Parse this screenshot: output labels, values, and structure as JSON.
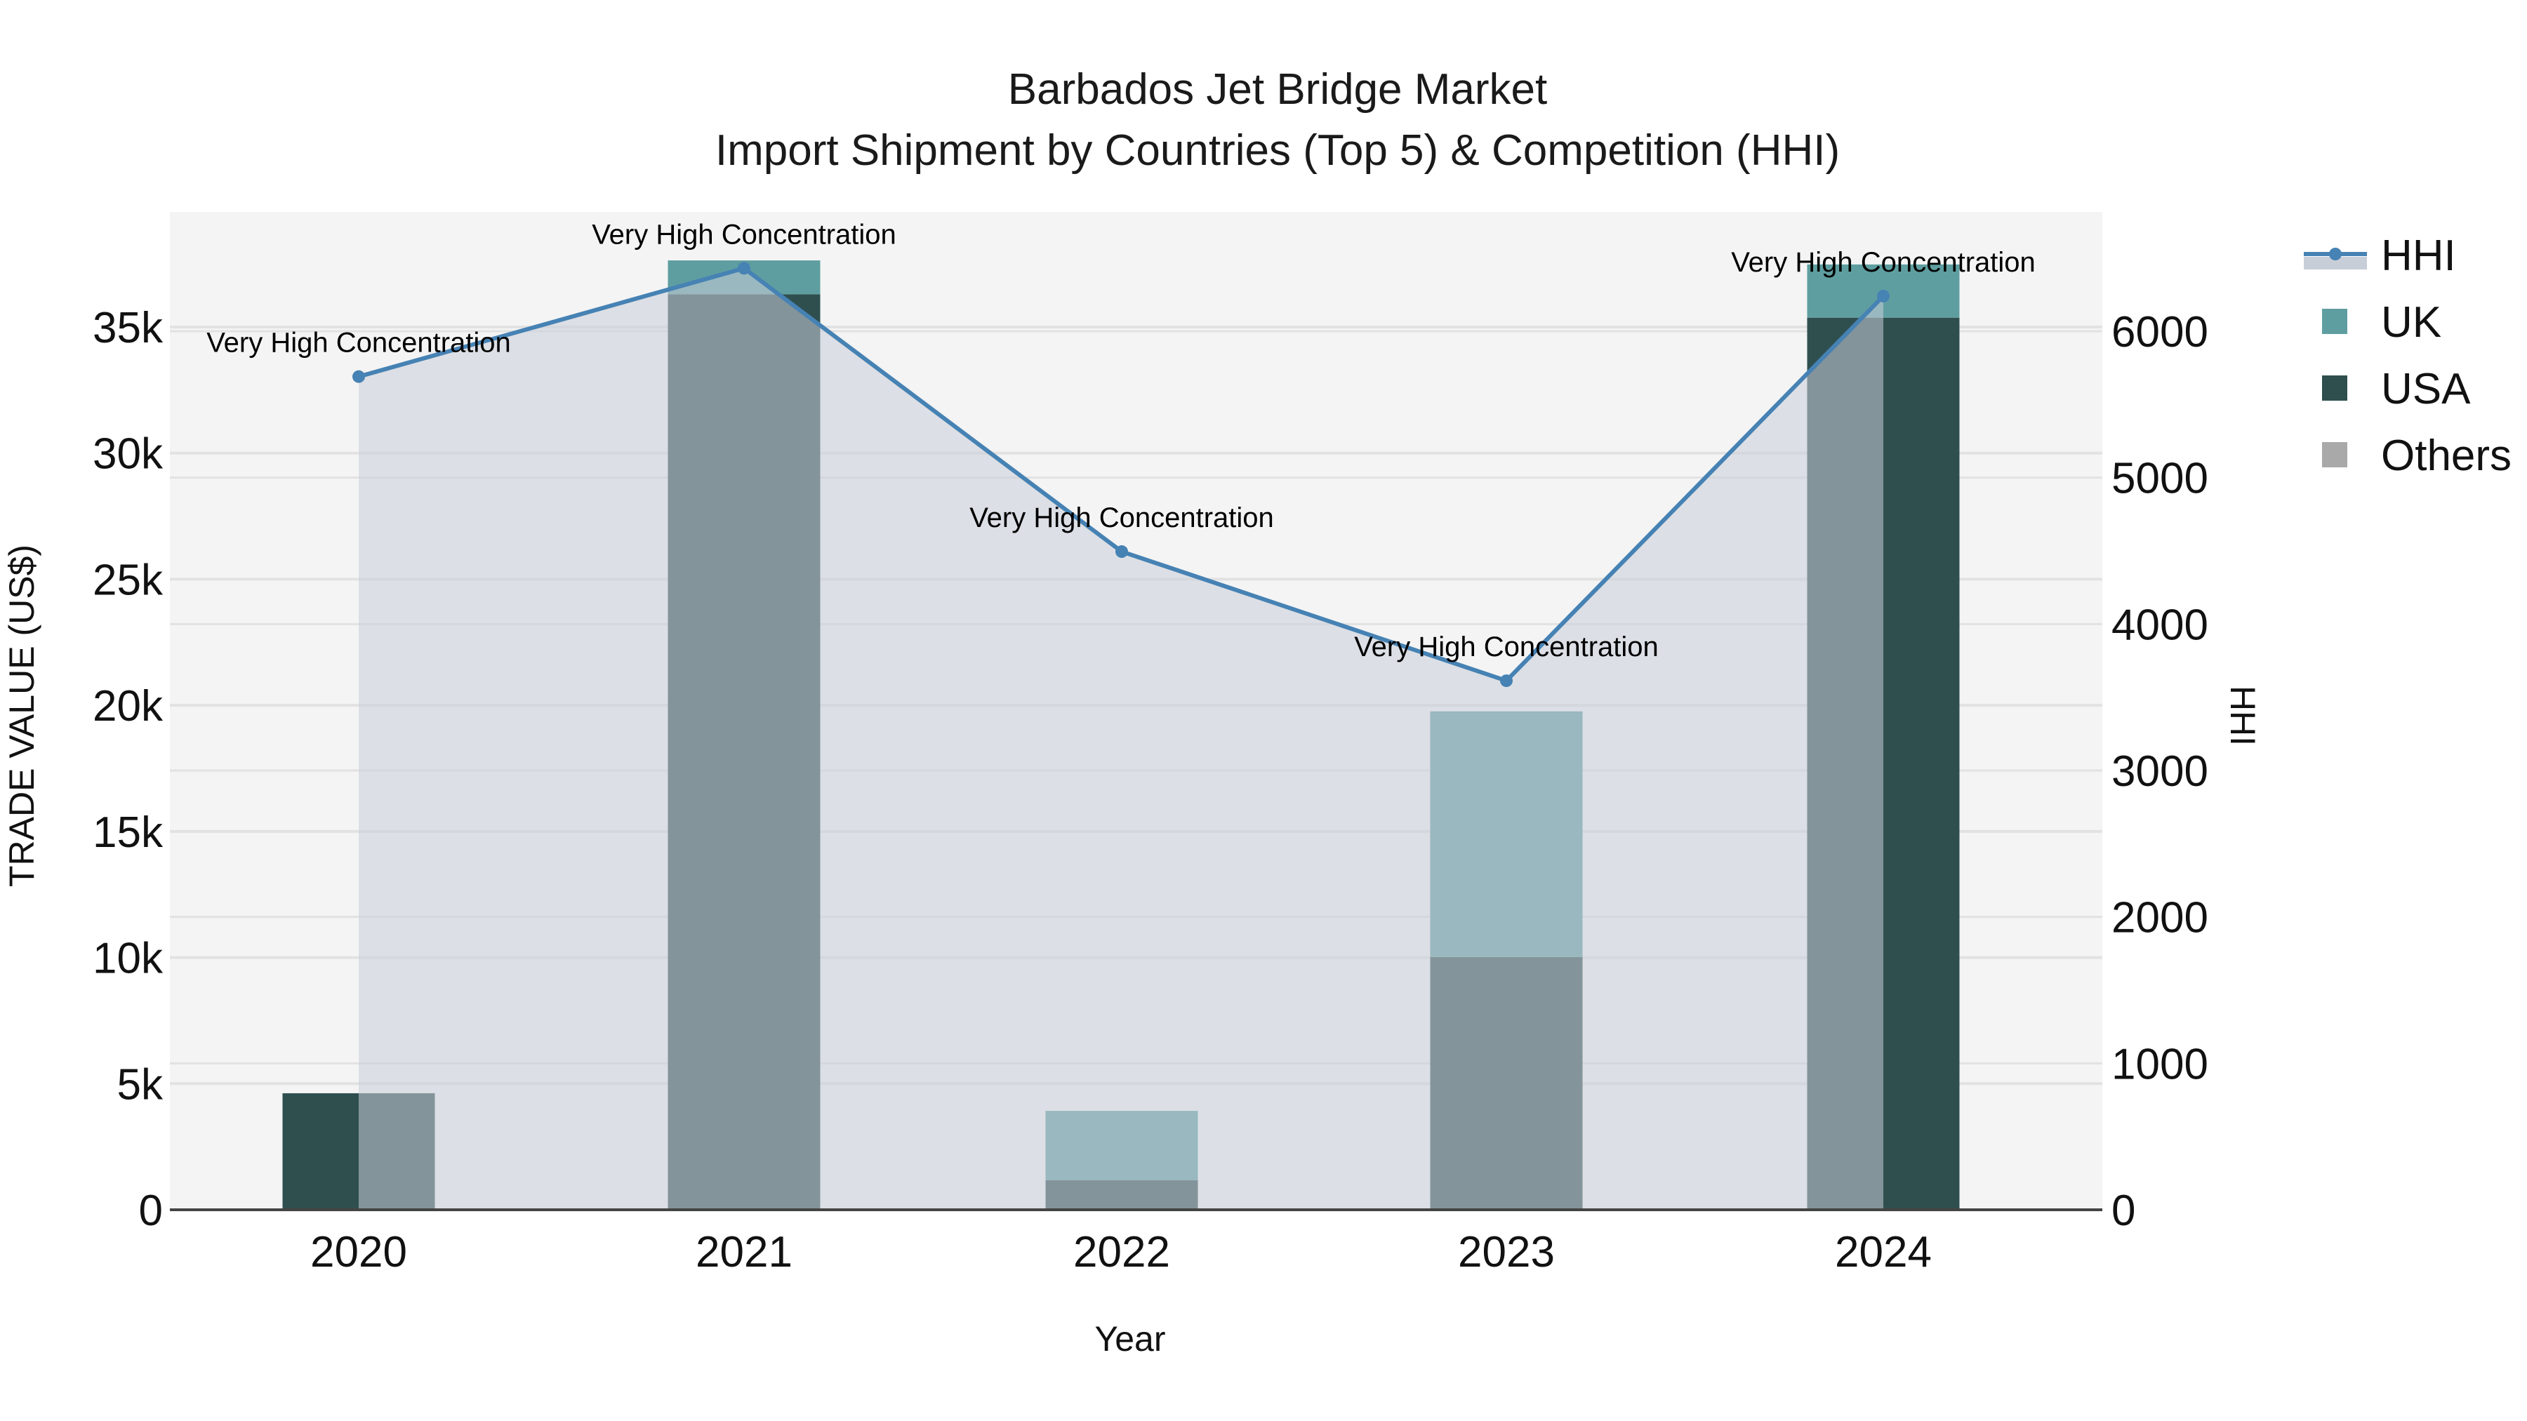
{
  "chart_data": {
    "type": "bar",
    "title": "Barbados Jet Bridge Market",
    "subtitle": "Import Shipment by Countries (Top 5) & Competition (HHI)",
    "xlabel": "Year",
    "ylabel": "TRADE VALUE (US$)",
    "y2label": "HHI",
    "categories": [
      "2020",
      "2021",
      "2022",
      "2023",
      "2024"
    ],
    "barmode": "stack",
    "series": [
      {
        "name": "USA",
        "type": "bar",
        "color": "#2f4f4f",
        "values": [
          4620,
          36300,
          1170,
          10020,
          35370
        ]
      },
      {
        "name": "UK",
        "type": "bar",
        "color": "#5f9ea0",
        "values": [
          0,
          1340,
          2750,
          9740,
          2110
        ]
      },
      {
        "name": "Others",
        "type": "bar",
        "color": "#a9a9a9",
        "values": [
          0,
          0,
          0,
          0,
          0
        ]
      },
      {
        "name": "HHI",
        "type": "line",
        "axis": "y2",
        "color": "#4682b4",
        "fill_color": "#c8ced8",
        "values": [
          5690,
          6430,
          4495,
          3613,
          6240
        ]
      }
    ],
    "annotations": [
      {
        "x": "2020",
        "text": "Very High Concentration"
      },
      {
        "x": "2021",
        "text": "Very High Concentration"
      },
      {
        "x": "2022",
        "text": "Very High Concentration"
      },
      {
        "x": "2023",
        "text": "Very High Concentration"
      },
      {
        "x": "2024",
        "text": "Very High Concentration"
      }
    ],
    "ylim": [
      0,
      39600
    ],
    "y2lim": [
      0,
      6760
    ],
    "yticks": [
      "0",
      "5k",
      "10k",
      "15k",
      "20k",
      "25k",
      "30k",
      "35k"
    ],
    "ytick_values": [
      0,
      5000,
      10000,
      15000,
      20000,
      25000,
      30000,
      35000
    ],
    "y2ticks": [
      "0",
      "1000",
      "2000",
      "3000",
      "4000",
      "5000",
      "6000"
    ],
    "y2tick_values": [
      0,
      1000,
      2000,
      3000,
      4000,
      5000,
      6000
    ],
    "grid": true,
    "legend_position": "right"
  },
  "legend": {
    "items": [
      {
        "label": "HHI",
        "color": "#4682b4"
      },
      {
        "label": "UK",
        "color": "#5f9ea0"
      },
      {
        "label": "USA",
        "color": "#2f4f4f"
      },
      {
        "label": "Others",
        "color": "#a9a9a9"
      }
    ]
  },
  "colors": {
    "plot_bg": "#f4f4f4",
    "grid": "#e2e2e2",
    "axis_line": "#444444"
  }
}
